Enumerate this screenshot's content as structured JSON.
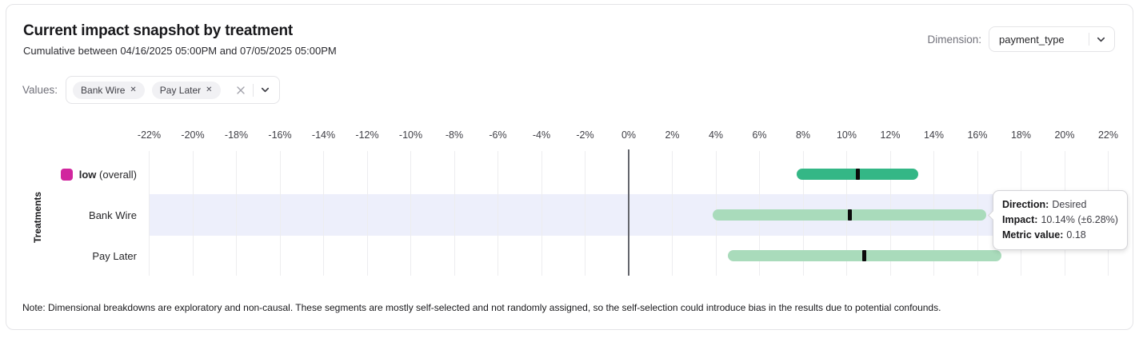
{
  "header": {
    "title": "Current impact snapshot by treatment",
    "subtitle": "Cumulative between 04/16/2025 05:00PM and 07/05/2025 05:00PM"
  },
  "dimension": {
    "label": "Dimension:",
    "selected": "payment_type"
  },
  "values_filter": {
    "label": "Values:",
    "chips": [
      "Bank Wire",
      "Pay Later"
    ]
  },
  "chart_data": {
    "type": "range_bar",
    "orientation": "horizontal",
    "ylabel": "Treatments",
    "x_unit": "%",
    "xlim": [
      -22,
      22
    ],
    "tick_step": 2,
    "tick_labels": [
      "-22%",
      "-20%",
      "-18%",
      "-16%",
      "-14%",
      "-12%",
      "-10%",
      "-8%",
      "-6%",
      "-4%",
      "-2%",
      "0%",
      "2%",
      "4%",
      "6%",
      "8%",
      "10%",
      "12%",
      "14%",
      "16%",
      "18%",
      "20%",
      "22%"
    ],
    "grid": true,
    "zero_line": true,
    "marker_color": "#0b0b0b",
    "highlight_color": "#edeffb",
    "rows": [
      {
        "name": "low (overall)",
        "name_bold": "low",
        "name_rest": " (overall)",
        "swatch_color": "#d1269e",
        "bar_color": "#34b786",
        "impact_pct": 10.5,
        "ci_low_pct": 7.7,
        "ci_high_pct": 13.3,
        "highlighted": false
      },
      {
        "name": "Bank Wire",
        "bar_color": "#a9dbbb",
        "impact_pct": 10.14,
        "ci_low_pct": 3.86,
        "ci_high_pct": 16.42,
        "highlighted": true
      },
      {
        "name": "Pay Later",
        "bar_color": "#a9dbbb",
        "impact_pct": 10.8,
        "ci_low_pct": 4.55,
        "ci_high_pct": 17.1,
        "highlighted": false
      }
    ]
  },
  "tooltip": {
    "rows": [
      {
        "label": "Direction:",
        "value": "Desired"
      },
      {
        "label": "Impact:",
        "value": "10.14% (±6.28%)"
      },
      {
        "label": "Metric value:",
        "value": "0.18"
      }
    ]
  },
  "note": "Note: Dimensional breakdowns are exploratory and non-causal. These segments are mostly self-selected and not randomly assigned, so the self-selection could introduce bias in the results due to potential confounds."
}
